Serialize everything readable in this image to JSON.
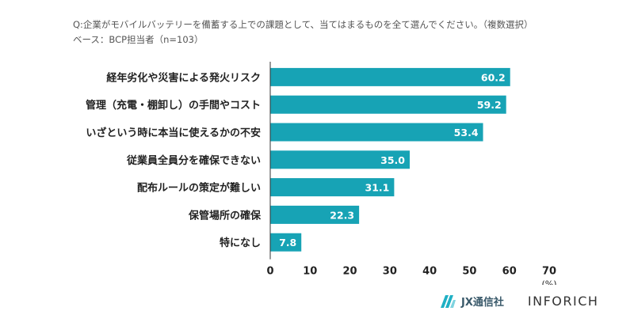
{
  "question": "Q:企業がモバイルバッテリーを備蓄する上での課題として、当てはまるものを全て選んでください。（複数選択）",
  "base": "ベース：BCP担当者（n=103）",
  "colors": {
    "bar": "#17a3b5",
    "value_text": "#ffffff",
    "axis": "#333333"
  },
  "chart_data": {
    "type": "bar",
    "orientation": "horizontal",
    "categories": [
      "経年劣化や災害による発火リスク",
      "管理（充電・棚卸し）の手間やコスト",
      "いざという時に本当に使えるかの不安",
      "従業員全員分を確保できない",
      "配布ルールの策定が難しい",
      "保管場所の確保",
      "特になし"
    ],
    "values": [
      60.2,
      59.2,
      53.4,
      35.0,
      31.1,
      22.3,
      7.8
    ],
    "value_labels": [
      "60.2",
      "59.2",
      "53.4",
      "35.0",
      "31.1",
      "22.3",
      "7.8"
    ],
    "xlim": [
      0,
      70
    ],
    "ticks": [
      "0",
      "10",
      "20",
      "30",
      "40",
      "50",
      "60",
      "70"
    ],
    "unit": "(%)",
    "grid": false
  },
  "footer": {
    "logo_left_name": "JX通信社",
    "logo_right_name": "INFORICH",
    "logo_left_icon": "jx-stripes-icon"
  }
}
